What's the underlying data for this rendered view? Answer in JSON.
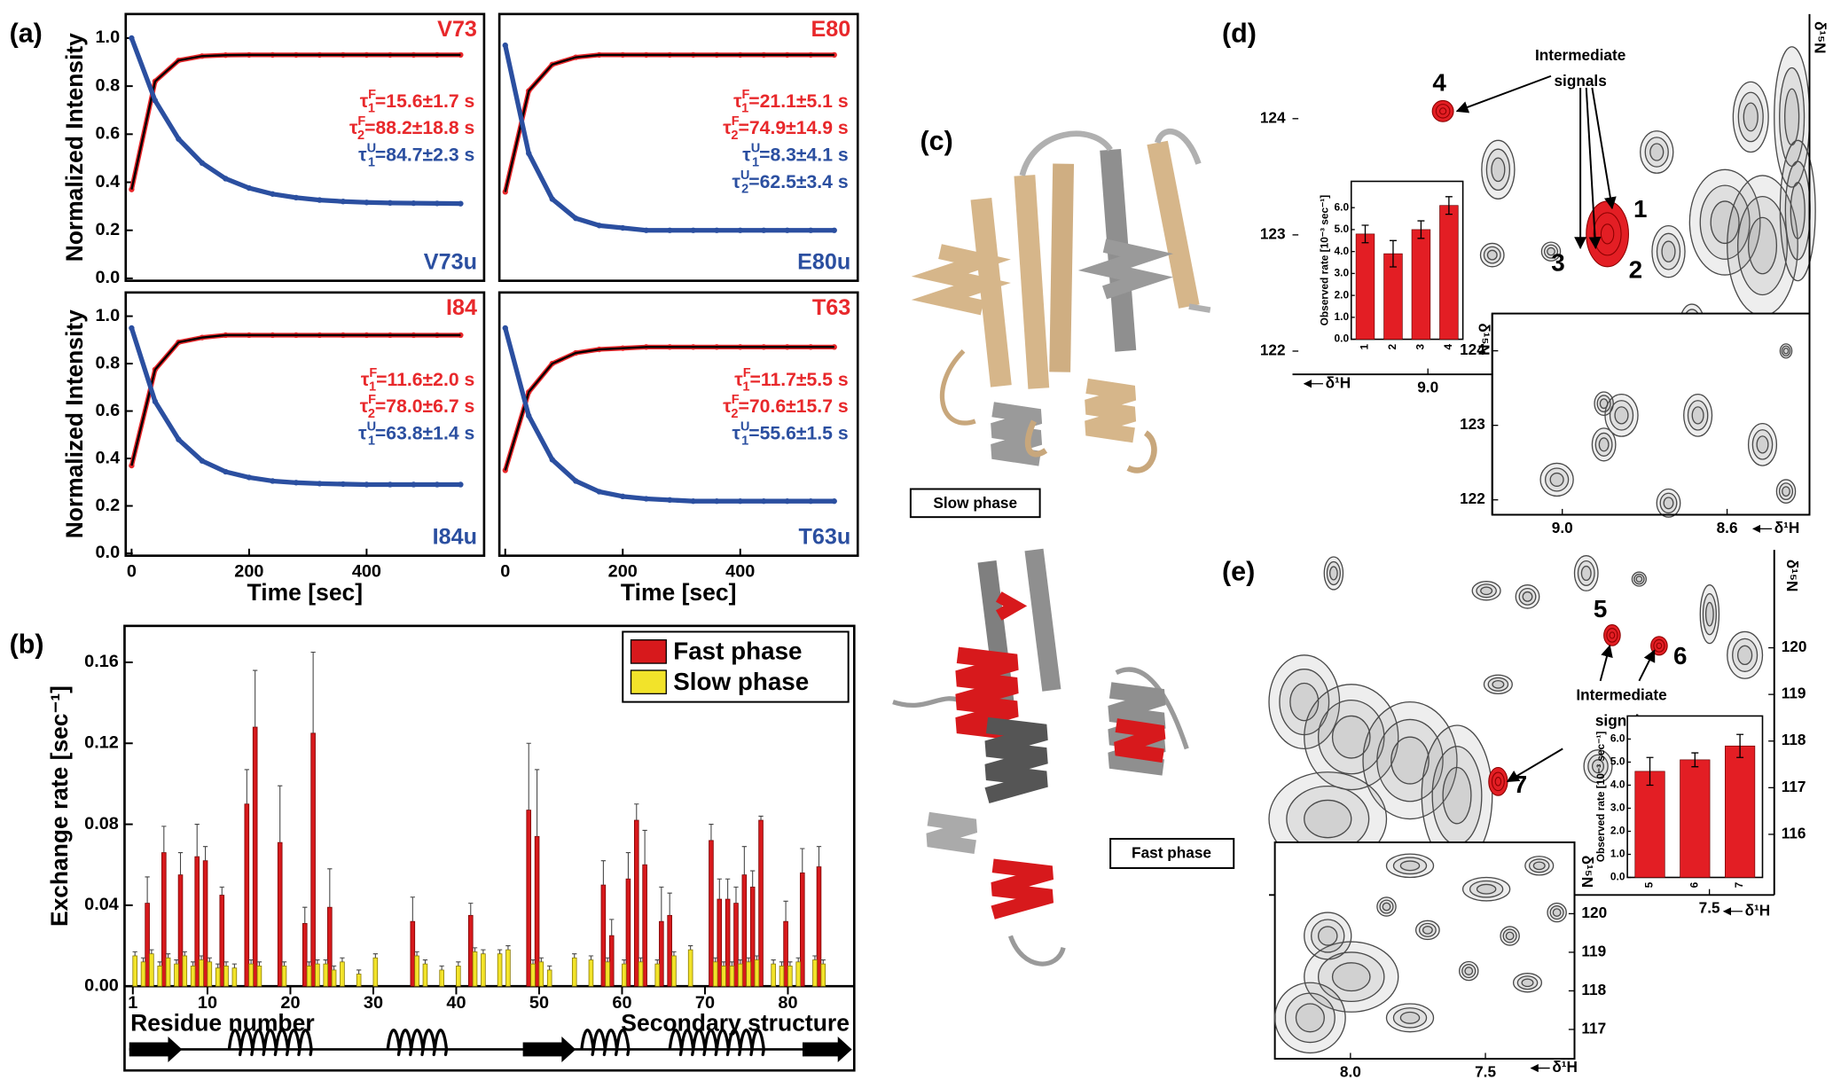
{
  "panel_labels": [
    "(a)",
    "(b)",
    "(c)",
    "(d)",
    "(e)"
  ],
  "structure": {
    "slow_label": "Slow phase",
    "fast_label": "Fast phase"
  },
  "chart_data": [
    {
      "type": "line",
      "y_label": "Normalized Intensity",
      "x": [
        0,
        40,
        80,
        120,
        160,
        200,
        240,
        280,
        320,
        360,
        400,
        440,
        480,
        520,
        560
      ],
      "xlim": [
        -10,
        600
      ],
      "ylim": [
        -0.01,
        1.1
      ],
      "yticks": [
        {
          "value": 0,
          "label": "0.0"
        },
        0.2,
        0.4,
        0.6,
        0.8,
        {
          "value": 1,
          "label": "1.0"
        }
      ],
      "series": [
        {
          "name": "V73",
          "color": "#e8282b",
          "values": [
            0.37,
            0.82,
            0.907,
            0.925,
            0.929,
            0.93,
            0.93,
            0.93,
            0.93,
            0.93,
            0.93,
            0.93,
            0.93,
            0.93,
            0.93
          ]
        },
        {
          "name": "V73u",
          "color": "#2b4fa0",
          "values": [
            1.0,
            0.74,
            0.58,
            0.48,
            0.415,
            0.376,
            0.351,
            0.336,
            0.326,
            0.32,
            0.316,
            0.314,
            0.313,
            0.312,
            0.311
          ]
        }
      ],
      "annotations": [
        {
          "symbol": "τ",
          "sup": "F",
          "sub": "1",
          "rest": "=15.6±1.7 s",
          "color": "#e8282b"
        },
        {
          "symbol": "τ",
          "sup": "F",
          "sub": "2",
          "rest": "=88.2±18.8 s",
          "color": "#e8282b"
        },
        {
          "symbol": "τ",
          "sup": "U",
          "sub": "1",
          "rest": "=84.7±2.3 s",
          "color": "#2b4fa0"
        }
      ]
    },
    {
      "type": "line",
      "x": [
        0,
        40,
        80,
        120,
        160,
        200,
        240,
        280,
        320,
        360,
        400,
        440,
        480,
        520,
        560
      ],
      "xlim": [
        -10,
        600
      ],
      "ylim": [
        -0.01,
        1.1
      ],
      "series": [
        {
          "name": "E80",
          "color": "#e8282b",
          "values": [
            0.36,
            0.78,
            0.89,
            0.92,
            0.93,
            0.93,
            0.93,
            0.93,
            0.93,
            0.93,
            0.93,
            0.93,
            0.93,
            0.93,
            0.93
          ]
        },
        {
          "name": "E80u",
          "color": "#2b4fa0",
          "values": [
            0.97,
            0.52,
            0.33,
            0.25,
            0.22,
            0.21,
            0.2,
            0.2,
            0.2,
            0.2,
            0.2,
            0.2,
            0.2,
            0.2,
            0.2
          ]
        }
      ],
      "annotations": [
        {
          "symbol": "τ",
          "sup": "F",
          "sub": "1",
          "rest": "=21.1±5.1 s",
          "color": "#e8282b"
        },
        {
          "symbol": "τ",
          "sup": "F",
          "sub": "2",
          "rest": "=74.9±14.9 s",
          "color": "#e8282b"
        },
        {
          "symbol": "τ",
          "sup": "U",
          "sub": "1",
          "rest": "=8.3±4.1 s",
          "color": "#2b4fa0"
        },
        {
          "symbol": "τ",
          "sup": "U",
          "sub": "2",
          "rest": "=62.5±3.4 s",
          "color": "#2b4fa0"
        }
      ]
    },
    {
      "type": "line",
      "y_label": "Normalized Intensity",
      "x_label": "Time [sec]",
      "x": [
        0,
        40,
        80,
        120,
        160,
        200,
        240,
        280,
        320,
        360,
        400,
        440,
        480,
        520,
        560
      ],
      "xlim": [
        -10,
        600
      ],
      "ylim": [
        -0.01,
        1.1
      ],
      "xticks": [
        0,
        200,
        400
      ],
      "yticks": [
        {
          "value": 0,
          "label": "0.0"
        },
        0.2,
        0.4,
        0.6,
        0.8,
        {
          "value": 1,
          "label": "1.0"
        }
      ],
      "series": [
        {
          "name": "I84",
          "color": "#e8282b",
          "values": [
            0.37,
            0.775,
            0.89,
            0.91,
            0.92,
            0.92,
            0.92,
            0.92,
            0.92,
            0.92,
            0.92,
            0.92,
            0.92,
            0.92,
            0.92
          ]
        },
        {
          "name": "I84u",
          "color": "#2b4fa0",
          "values": [
            0.95,
            0.64,
            0.48,
            0.39,
            0.344,
            0.32,
            0.305,
            0.298,
            0.294,
            0.292,
            0.29,
            0.29,
            0.29,
            0.29,
            0.29
          ]
        }
      ],
      "annotations": [
        {
          "symbol": "τ",
          "sup": "F",
          "sub": "1",
          "rest": "=11.6±2.0 s",
          "color": "#e8282b"
        },
        {
          "symbol": "τ",
          "sup": "F",
          "sub": "2",
          "rest": "=78.0±6.7 s",
          "color": "#e8282b"
        },
        {
          "symbol": "τ",
          "sup": "U",
          "sub": "1",
          "rest": "=63.8±1.4 s",
          "color": "#2b4fa0"
        }
      ]
    },
    {
      "type": "line",
      "x_label": "Time [sec]",
      "x": [
        0,
        40,
        80,
        120,
        160,
        200,
        240,
        280,
        320,
        360,
        400,
        440,
        480,
        520,
        560
      ],
      "xlim": [
        -10,
        600
      ],
      "ylim": [
        -0.01,
        1.1
      ],
      "xticks": [
        0,
        200,
        400
      ],
      "series": [
        {
          "name": "T63",
          "color": "#e8282b",
          "values": [
            0.35,
            0.68,
            0.8,
            0.845,
            0.86,
            0.865,
            0.87,
            0.87,
            0.87,
            0.87,
            0.87,
            0.87,
            0.87,
            0.87,
            0.87
          ]
        },
        {
          "name": "T63u",
          "color": "#2b4fa0",
          "values": [
            0.95,
            0.58,
            0.395,
            0.305,
            0.26,
            0.24,
            0.23,
            0.225,
            0.22,
            0.22,
            0.22,
            0.22,
            0.22,
            0.22,
            0.22
          ]
        }
      ],
      "annotations": [
        {
          "symbol": "τ",
          "sup": "F",
          "sub": "1",
          "rest": "=11.7±5.5 s",
          "color": "#e8282b"
        },
        {
          "symbol": "τ",
          "sup": "F",
          "sub": "2",
          "rest": "=70.6±15.7 s",
          "color": "#e8282b"
        },
        {
          "symbol": "τ",
          "sup": "U",
          "sub": "1",
          "rest": "=55.6±1.5 s",
          "color": "#2b4fa0"
        }
      ]
    },
    {
      "type": "bar",
      "y_label": "Exchange rate [sec⁻¹]",
      "x_label": "Residue number",
      "track_label": "Secondary structure",
      "xlim": [
        0,
        88
      ],
      "ylim": [
        0,
        0.178
      ],
      "xticks": [
        1,
        10,
        20,
        30,
        40,
        50,
        60,
        70,
        80
      ],
      "yticks": [
        {
          "value": 0,
          "label": "0.00"
        },
        0.04,
        0.08,
        0.12,
        0.16
      ],
      "legend": "upper right",
      "series": [
        {
          "name": "Fast phase",
          "color": "#d7191c",
          "x": [
            3,
            5,
            7,
            9,
            10,
            12,
            15,
            16,
            19,
            22,
            23,
            25,
            35,
            42,
            49,
            50,
            58,
            59,
            61,
            62,
            63,
            65,
            66,
            71,
            72,
            73,
            74,
            75,
            76,
            77,
            80,
            82,
            84
          ],
          "values": [
            0.041,
            0.066,
            0.055,
            0.064,
            0.062,
            0.045,
            0.09,
            0.128,
            0.071,
            0.031,
            0.125,
            0.039,
            0.032,
            0.035,
            0.087,
            0.074,
            0.05,
            0.025,
            0.053,
            0.082,
            0.06,
            0.032,
            0.035,
            0.072,
            0.043,
            0.043,
            0.041,
            0.055,
            0.049,
            0.082,
            0.032,
            0.056,
            0.059
          ],
          "errors": [
            0.013,
            0.013,
            0.011,
            0.016,
            0.007,
            0.004,
            0.017,
            0.028,
            0.028,
            0.008,
            0.04,
            0.019,
            0.012,
            0.006,
            0.033,
            0.033,
            0.012,
            0.008,
            0.013,
            0.008,
            0.017,
            0.017,
            0.011,
            0.008,
            0.01,
            0.01,
            0.008,
            0.014,
            0.008,
            0.002,
            0.01,
            0.012,
            0.01
          ]
        },
        {
          "name": "Slow phase",
          "color": "#f2e32a",
          "x": [
            1,
            2,
            3,
            4,
            5,
            6,
            7,
            8,
            9,
            10,
            11,
            12,
            13,
            15,
            16,
            19,
            22,
            23,
            24,
            25,
            26,
            28,
            30,
            35,
            36,
            38,
            40,
            42,
            43,
            45,
            46,
            49,
            50,
            51,
            54,
            56,
            58,
            60,
            62,
            64,
            66,
            68,
            71,
            72,
            73,
            74,
            75,
            76,
            78,
            79,
            80,
            81,
            83,
            84
          ],
          "values": [
            0.015,
            0.012,
            0.016,
            0.01,
            0.014,
            0.011,
            0.015,
            0.01,
            0.013,
            0.012,
            0.009,
            0.01,
            0.009,
            0.011,
            0.01,
            0.01,
            0.01,
            0.011,
            0.011,
            0.008,
            0.012,
            0.006,
            0.014,
            0.015,
            0.011,
            0.008,
            0.01,
            0.017,
            0.016,
            0.016,
            0.018,
            0.011,
            0.012,
            0.008,
            0.014,
            0.013,
            0.012,
            0.011,
            0.012,
            0.011,
            0.015,
            0.018,
            0.012,
            0.01,
            0.01,
            0.011,
            0.012,
            0.013,
            0.011,
            0.01,
            0.01,
            0.012,
            0.013,
            0.011
          ],
          "errors": [
            0.002,
            0.002,
            0.002,
            0.002,
            0.002,
            0.002,
            0.002,
            0.002,
            0.002,
            0.002,
            0.002,
            0.002,
            0.002,
            0.002,
            0.002,
            0.002,
            0.002,
            0.002,
            0.002,
            0.002,
            0.002,
            0.002,
            0.002,
            0.002,
            0.002,
            0.002,
            0.002,
            0.002,
            0.002,
            0.002,
            0.002,
            0.002,
            0.002,
            0.002,
            0.002,
            0.002,
            0.002,
            0.002,
            0.002,
            0.002,
            0.002,
            0.002,
            0.002,
            0.002,
            0.002,
            0.002,
            0.002,
            0.002,
            0.002,
            0.002,
            0.002,
            0.002,
            0.002,
            0.002
          ]
        }
      ]
    },
    {
      "type": "spectrum",
      "x_label": "δ¹H",
      "y_label": "δ¹⁵N",
      "ytick_side": "left",
      "xlim": [
        9.33,
        8.07
      ],
      "ylim": [
        121.8,
        124.9
      ],
      "xticks": [
        {
          "value": 9,
          "label": "9.0"
        }
      ],
      "yticks": [
        122,
        123,
        124
      ],
      "peak_labels": [
        "4",
        "1",
        "3",
        "2"
      ],
      "annotation": [
        "Intermediate",
        "signals"
      ]
    },
    {
      "type": "spectrum",
      "x_label": "δ¹H",
      "y_label": "δ¹⁵N",
      "ytick_side": "left",
      "xlim": [
        9.17,
        8.4
      ],
      "ylim": [
        121.8,
        124.5
      ],
      "xticks": [
        {
          "value": 9,
          "label": "9.0"
        },
        8.6
      ],
      "yticks": [
        122,
        123,
        124
      ]
    },
    {
      "type": "bar",
      "y_label": "Observed rate [10⁻³ sec⁻¹]",
      "color": "#e31e24",
      "categories": [
        "1",
        "2",
        "3",
        "4"
      ],
      "values": [
        4.8,
        3.9,
        5.0,
        6.1
      ],
      "errors": [
        0.4,
        0.6,
        0.4,
        0.4
      ],
      "ylim": [
        0,
        7.2
      ],
      "yticks": [
        {
          "value": 0,
          "label": "0.0"
        },
        {
          "value": 1,
          "label": "1.0"
        },
        {
          "value": 2,
          "label": "2.0"
        },
        {
          "value": 3,
          "label": "3.0"
        },
        {
          "value": 4,
          "label": "4.0"
        },
        {
          "value": 5,
          "label": "5.0"
        },
        {
          "value": 6,
          "label": "6.0"
        }
      ]
    },
    {
      "type": "spectrum",
      "x_label": "δ¹H",
      "y_label": "δ¹⁵N",
      "ytick_side": "right",
      "xlim": [
        9.13,
        7.26
      ],
      "ylim": [
        114.7,
        122.1
      ],
      "xticks": [
        {
          "value": 7.5,
          "label": "7.5"
        }
      ],
      "yticks": [
        116,
        117,
        118,
        119,
        120
      ],
      "peak_labels": [
        "5",
        "6",
        "7"
      ],
      "annotation": [
        "Intermediate",
        "signals"
      ]
    },
    {
      "type": "spectrum",
      "x_label": "δ¹H",
      "y_label": "δ¹⁵N",
      "ytick_side": "right",
      "xlim": [
        8.28,
        7.17
      ],
      "ylim": [
        116.24,
        121.85
      ],
      "xticks": [
        {
          "value": 8,
          "label": "8.0"
        },
        7.5
      ],
      "yticks": [
        117,
        118,
        119,
        120
      ]
    },
    {
      "type": "bar",
      "y_label": "Observed rate [10⁻³ sec⁻¹]",
      "color": "#e31e24",
      "categories": [
        "5",
        "6",
        "7"
      ],
      "values": [
        4.6,
        5.1,
        5.7
      ],
      "errors": [
        0.6,
        0.3,
        0.5
      ],
      "ylim": [
        0,
        7.0
      ],
      "yticks": [
        {
          "value": 0,
          "label": "0.0"
        },
        {
          "value": 1,
          "label": "1.0"
        },
        {
          "value": 2,
          "label": "2.0"
        },
        {
          "value": 3,
          "label": "3.0"
        },
        {
          "value": 4,
          "label": "4.0"
        },
        {
          "value": 5,
          "label": "5.0"
        },
        {
          "value": 6,
          "label": "6.0"
        }
      ]
    }
  ]
}
